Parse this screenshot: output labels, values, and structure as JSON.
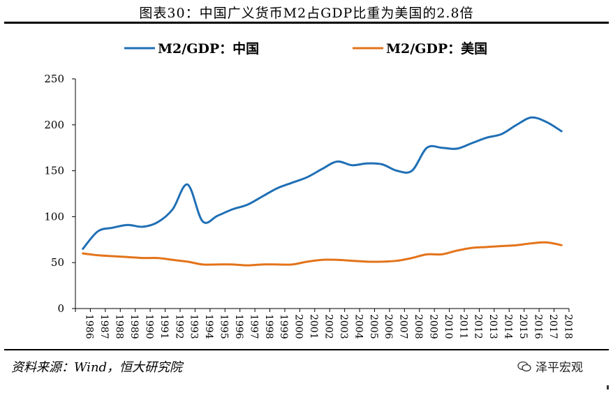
{
  "header": {
    "title": "图表30：中国广义货币M2占GDP比重为美国的2.8倍"
  },
  "footer": {
    "source": "资料来源：Wind，恒大研究院",
    "watermark": "泽平宏观"
  },
  "chart_data": {
    "type": "line",
    "title": "图表30：中国广义货币M2占GDP比重为美国的2.8倍",
    "xlabel": "",
    "ylabel": "",
    "ylim": [
      0,
      250
    ],
    "yticks": [
      0,
      50,
      100,
      150,
      200,
      250
    ],
    "grid": false,
    "legend_position": "top",
    "categories": [
      "1986",
      "1987",
      "1988",
      "1989",
      "1990",
      "1991",
      "1992",
      "1993",
      "1994",
      "1995",
      "1996",
      "1997",
      "1998",
      "1999",
      "2000",
      "2001",
      "2002",
      "2003",
      "2004",
      "2005",
      "2006",
      "2007",
      "2008",
      "2009",
      "2010",
      "2011",
      "2012",
      "2013",
      "2014",
      "2015",
      "2016",
      "2017",
      "2018"
    ],
    "series": [
      {
        "name": "M2/GDP：中国",
        "color": "#1f6fb5",
        "values": [
          65,
          84,
          88,
          91,
          89,
          94,
          108,
          135,
          95,
          101,
          108,
          113,
          122,
          131,
          137,
          143,
          152,
          160,
          156,
          158,
          157,
          150,
          150,
          175,
          175,
          174,
          180,
          186,
          190,
          200,
          208,
          203,
          193
        ]
      },
      {
        "name": "M2/GDP：美国",
        "color": "#e3731a",
        "values": [
          60,
          58,
          57,
          56,
          55,
          55,
          53,
          51,
          48,
          48,
          48,
          47,
          48,
          48,
          48,
          51,
          53,
          53,
          52,
          51,
          51,
          52,
          55,
          59,
          59,
          63,
          66,
          67,
          68,
          69,
          71,
          72,
          69
        ]
      }
    ]
  }
}
